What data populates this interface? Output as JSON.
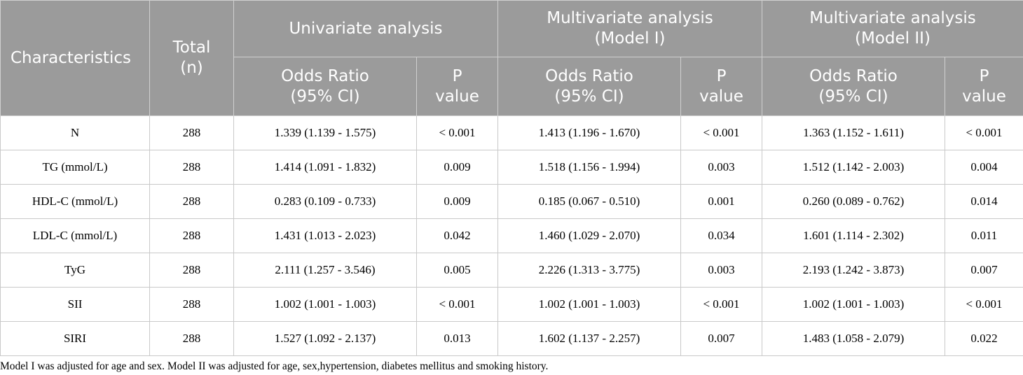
{
  "header": {
    "characteristics": "Characteristics",
    "total_line1": "Total",
    "total_line2": "(n)",
    "univariate": "Univariate analysis",
    "model1_line1": "Multivariate analysis",
    "model1_line2": "(Model I)",
    "model2_line1": "Multivariate analysis",
    "model2_line2": "(Model II)",
    "or_line1": "Odds Ratio",
    "or_line2": "(95% CI)",
    "p_line1": "P",
    "p_line2": "value"
  },
  "rows": [
    {
      "name": "N",
      "total": "288",
      "uni_or": "1.339 (1.139 - 1.575)",
      "uni_p": "< 0.001",
      "m1_or": "1.413 (1.196 - 1.670)",
      "m1_p": "< 0.001",
      "m2_or": "1.363 (1.152 - 1.611)",
      "m2_p": "< 0.001"
    },
    {
      "name": "TG (mmol/L)",
      "total": "288",
      "uni_or": "1.414 (1.091 - 1.832)",
      "uni_p": "0.009",
      "m1_or": "1.518 (1.156 - 1.994)",
      "m1_p": "0.003",
      "m2_or": "1.512 (1.142 - 2.003)",
      "m2_p": "0.004"
    },
    {
      "name": "HDL-C (mmol/L)",
      "total": "288",
      "uni_or": "0.283 (0.109 - 0.733)",
      "uni_p": "0.009",
      "m1_or": "0.185 (0.067 - 0.510)",
      "m1_p": "0.001",
      "m2_or": "0.260 (0.089 - 0.762)",
      "m2_p": "0.014"
    },
    {
      "name": "LDL-C (mmol/L)",
      "total": "288",
      "uni_or": "1.431 (1.013 - 2.023)",
      "uni_p": "0.042",
      "m1_or": "1.460 (1.029 - 2.070)",
      "m1_p": "0.034",
      "m2_or": "1.601 (1.114 - 2.302)",
      "m2_p": "0.011"
    },
    {
      "name": "TyG",
      "total": "288",
      "uni_or": "2.111 (1.257 - 3.546)",
      "uni_p": "0.005",
      "m1_or": "2.226 (1.313 - 3.775)",
      "m1_p": "0.003",
      "m2_or": "2.193 (1.242 - 3.873)",
      "m2_p": "0.007"
    },
    {
      "name": "SII",
      "total": "288",
      "uni_or": "1.002 (1.001 - 1.003)",
      "uni_p": "< 0.001",
      "m1_or": "1.002 (1.001 - 1.003)",
      "m1_p": "< 0.001",
      "m2_or": "1.002 (1.001 - 1.003)",
      "m2_p": "< 0.001"
    },
    {
      "name": "SIRI",
      "total": "288",
      "uni_or": "1.527 (1.092 - 2.137)",
      "uni_p": "0.013",
      "m1_or": "1.602 (1.137 - 2.257)",
      "m1_p": "0.007",
      "m2_or": "1.483 (1.058 - 2.079)",
      "m2_p": "0.022"
    }
  ],
  "footnote": "Model I was adjusted for age and sex. Model II was adjusted for age, sex,hypertension, diabetes mellitus and smoking history.",
  "colors": {
    "header_bg": "#9b9b9b",
    "header_text": "#ffffff",
    "grid": "#c9c9c9"
  }
}
